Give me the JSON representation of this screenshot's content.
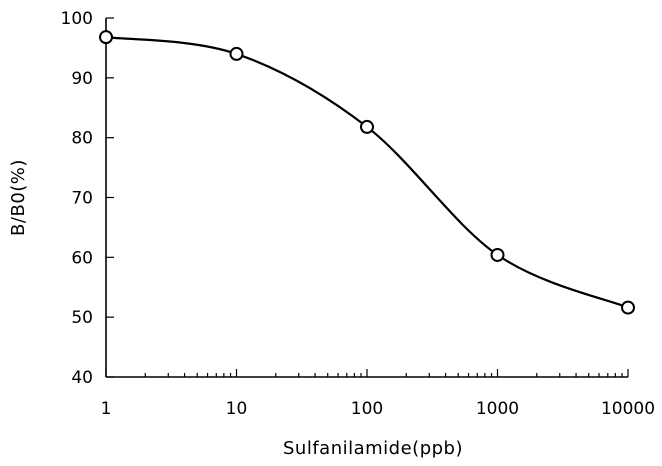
{
  "chart_data": {
    "type": "line",
    "title": "",
    "xlabel": "Sulfanilamide(ppb)",
    "ylabel": "B/B0(%)",
    "x_scale": "log",
    "xlim": [
      1,
      10000
    ],
    "ylim": [
      40,
      100
    ],
    "x_ticks": [
      "1",
      "10",
      "100",
      "1000",
      "10000"
    ],
    "y_ticks": [
      "40",
      "50",
      "60",
      "70",
      "80",
      "90",
      "100"
    ],
    "grid": false,
    "legend": "none",
    "series": [
      {
        "x": [
          1,
          10,
          100,
          1000,
          10000
        ],
        "y": [
          96.8,
          94.0,
          81.8,
          60.4,
          51.6
        ]
      }
    ]
  }
}
